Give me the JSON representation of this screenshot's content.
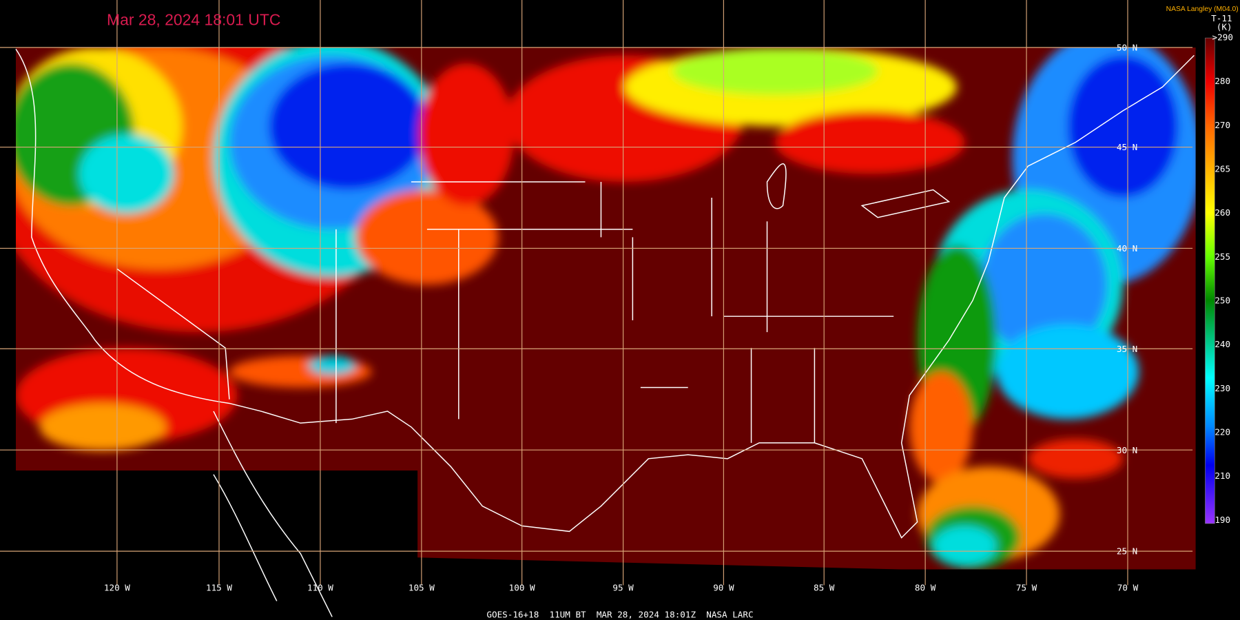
{
  "header": {
    "timestamp": "Mar 28, 2024 18:01 UTC",
    "credit": "NASA Langley (M04.0)"
  },
  "legend": {
    "channel": "T-11",
    "unit": "(K)",
    "labels": [
      ">290",
      "280",
      "270",
      "265",
      "260",
      "255",
      "250",
      "240",
      "230",
      "220",
      "210",
      "190"
    ]
  },
  "map": {
    "lat_labels": [
      "50 N",
      "45 N",
      "40 N",
      "35 N",
      "30 N",
      "25 N"
    ],
    "lon_labels": [
      "120 W",
      "115 W",
      "110 W",
      "105 W",
      "100 W",
      "95 W",
      "90 W",
      "85 W",
      "80 W",
      "75 W",
      "70 W"
    ]
  },
  "footer": {
    "caption": "GOES-16+18  11UM BT  MAR 28, 2024 18:01Z  NASA LARC"
  }
}
